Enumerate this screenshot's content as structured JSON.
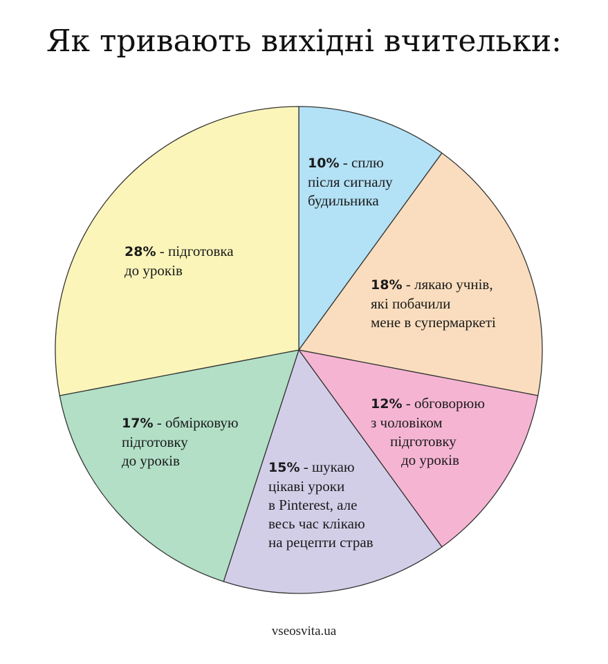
{
  "chart_data": {
    "type": "pie",
    "title": "Як тривають вихідні вчительки:",
    "start_angle_deg": 0,
    "direction": "clockwise",
    "slices": [
      {
        "value": 10,
        "pct": "10%",
        "color": "#B3E1F5",
        "lines": [
          "сплю",
          "після сигналу",
          "будильника"
        ]
      },
      {
        "value": 18,
        "pct": "18%",
        "color": "#FADDBE",
        "lines": [
          "лякаю учнів,",
          "які побачили",
          "мене в супермаркеті"
        ]
      },
      {
        "value": 12,
        "pct": "12%",
        "color": "#F5B5D2",
        "lines": [
          "обговорюю",
          "з чоловіком",
          "підготовку",
          "до уроків"
        ]
      },
      {
        "value": 15,
        "pct": "15%",
        "color": "#D3CEE8",
        "lines": [
          "шукаю",
          "цікаві уроки",
          "в Pinterest, але",
          "весь час клікаю",
          "на рецепти страв"
        ]
      },
      {
        "value": 17,
        "pct": "17%",
        "color": "#B2DFC6",
        "lines": [
          "обмірковую",
          "підготовку",
          "до уроків"
        ]
      },
      {
        "value": 28,
        "pct": "28%",
        "color": "#FBF5BA",
        "lines": [
          "підготовка",
          "до уроків"
        ]
      }
    ]
  },
  "footer": {
    "source": "vseosvita.ua"
  }
}
